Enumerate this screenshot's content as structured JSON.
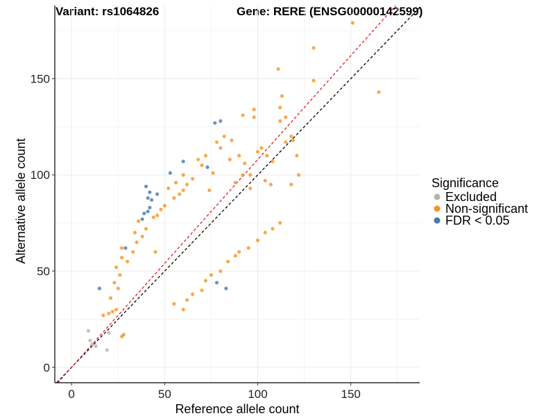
{
  "chart_data": {
    "type": "scatter",
    "title": "Variant: rs1064826",
    "subtitle": "Gene: RERE (ENSG00000142599)",
    "xlabel": "Reference allele count",
    "ylabel": "Alternative allele count",
    "xlim": [
      -9,
      187
    ],
    "ylim": [
      -8,
      188
    ],
    "xticks": [
      0,
      50,
      100,
      150
    ],
    "yticks": [
      0,
      50,
      100,
      150
    ],
    "grid": true,
    "legend": {
      "title": "Significance",
      "placement": "right",
      "entries": [
        {
          "label": "Excluded",
          "color": "#b3b3b3"
        },
        {
          "label": "Non-significant",
          "color": "#f7941d"
        },
        {
          "label": "FDR < 0.05",
          "color": "#4a78a8"
        }
      ]
    },
    "reference_lines": [
      {
        "style": "dashed",
        "color": "#000000",
        "slope": 1.0,
        "intercept": 0
      },
      {
        "style": "dashed",
        "color": "#e41a1c",
        "slope": 1.08,
        "intercept": 0
      }
    ],
    "series": [
      {
        "name": "Excluded",
        "color": "#b3b3b3",
        "points": [
          [
            9,
            19
          ],
          [
            10,
            14
          ],
          [
            11,
            12
          ],
          [
            13,
            11
          ],
          [
            19,
            9
          ],
          [
            20,
            18
          ]
        ]
      },
      {
        "name": "FDR < 0.05",
        "color": "#4a78a8",
        "points": [
          [
            15,
            41
          ],
          [
            29,
            62
          ],
          [
            39,
            80
          ],
          [
            40,
            94
          ],
          [
            41,
            81
          ],
          [
            42,
            83
          ],
          [
            42,
            91
          ],
          [
            43,
            87
          ],
          [
            46,
            90
          ],
          [
            41,
            88
          ],
          [
            77,
            127
          ],
          [
            80,
            128
          ],
          [
            60,
            107
          ],
          [
            73,
            104
          ],
          [
            78,
            44
          ],
          [
            83,
            41
          ],
          [
            53,
            101
          ],
          [
            38,
            77
          ]
        ]
      },
      {
        "name": "Non-significant",
        "color": "#f7941d",
        "points": [
          [
            151,
            179
          ],
          [
            130,
            166
          ],
          [
            165,
            143
          ],
          [
            111,
            155
          ],
          [
            130,
            149
          ],
          [
            113,
            141
          ],
          [
            112,
            135
          ],
          [
            115,
            130
          ],
          [
            112,
            128
          ],
          [
            98,
            134
          ],
          [
            98,
            130
          ],
          [
            92,
            131
          ],
          [
            115,
            117
          ],
          [
            118,
            120
          ],
          [
            119,
            118
          ],
          [
            121,
            110
          ],
          [
            122,
            100
          ],
          [
            118,
            95
          ],
          [
            100,
            112
          ],
          [
            102,
            114
          ],
          [
            105,
            110
          ],
          [
            108,
            107
          ],
          [
            104,
            97
          ],
          [
            107,
            95
          ],
          [
            96,
            93
          ],
          [
            28,
            17
          ],
          [
            27,
            16
          ],
          [
            17,
            27
          ],
          [
            20,
            28
          ],
          [
            22,
            29
          ],
          [
            24,
            30
          ],
          [
            21,
            36
          ],
          [
            25,
            41
          ],
          [
            23,
            44
          ],
          [
            26,
            48
          ],
          [
            24,
            52
          ],
          [
            27,
            57
          ],
          [
            30,
            55
          ],
          [
            27,
            62
          ],
          [
            33,
            60
          ],
          [
            35,
            65
          ],
          [
            38,
            68
          ],
          [
            40,
            72
          ],
          [
            34,
            70
          ],
          [
            36,
            76
          ],
          [
            44,
            78
          ],
          [
            48,
            82
          ],
          [
            50,
            84
          ],
          [
            55,
            88
          ],
          [
            58,
            90
          ],
          [
            60,
            92
          ],
          [
            62,
            95
          ],
          [
            65,
            98
          ],
          [
            70,
            105
          ],
          [
            68,
            108
          ],
          [
            72,
            110
          ],
          [
            78,
            117
          ],
          [
            82,
            120
          ],
          [
            86,
            118
          ],
          [
            90,
            110
          ],
          [
            93,
            106
          ],
          [
            96,
            100
          ],
          [
            88,
            96
          ],
          [
            92,
            100
          ],
          [
            85,
            108
          ],
          [
            80,
            114
          ],
          [
            76,
            101
          ],
          [
            74,
            92
          ],
          [
            60,
            100
          ],
          [
            56,
            96
          ],
          [
            52,
            93
          ],
          [
            46,
            79
          ],
          [
            45,
            60
          ],
          [
            60,
            30
          ],
          [
            55,
            33
          ],
          [
            62,
            35
          ],
          [
            65,
            38
          ],
          [
            70,
            40
          ],
          [
            72,
            45
          ],
          [
            75,
            48
          ],
          [
            80,
            50
          ],
          [
            84,
            55
          ],
          [
            88,
            58
          ],
          [
            90,
            60
          ],
          [
            95,
            62
          ],
          [
            100,
            66
          ],
          [
            104,
            70
          ],
          [
            108,
            72
          ],
          [
            112,
            75
          ]
        ]
      }
    ]
  }
}
